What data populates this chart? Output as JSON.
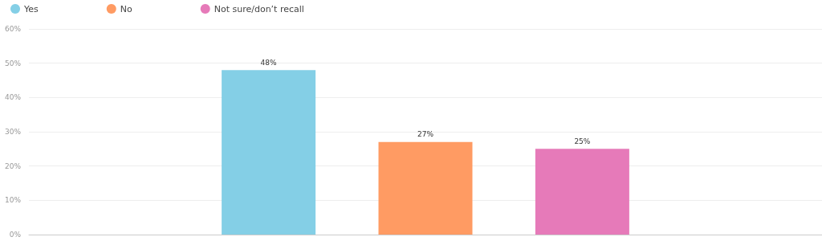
{
  "chart_data": {
    "type": "bar",
    "categories": [
      null
    ],
    "series": [
      {
        "name": "Yes",
        "color": "#84cfe6",
        "values": [
          48
        ],
        "value_labels": [
          "48%"
        ]
      },
      {
        "name": "No",
        "color": "#ff9b63",
        "values": [
          27
        ],
        "value_labels": [
          "27%"
        ]
      },
      {
        "name": "Not sure/don’t recall",
        "color": "#e67ab9",
        "values": [
          25
        ],
        "value_labels": [
          "25%"
        ]
      }
    ],
    "ylim": [
      0,
      60
    ],
    "yticks": [
      {
        "value": 0,
        "label": "0%"
      },
      {
        "value": 10,
        "label": "10%"
      },
      {
        "value": 20,
        "label": "20%"
      },
      {
        "value": 30,
        "label": "30%"
      },
      {
        "value": 40,
        "label": "40%"
      },
      {
        "value": 50,
        "label": "50%"
      },
      {
        "value": 60,
        "label": "60%"
      }
    ],
    "grid": "y",
    "legend": "top left"
  }
}
